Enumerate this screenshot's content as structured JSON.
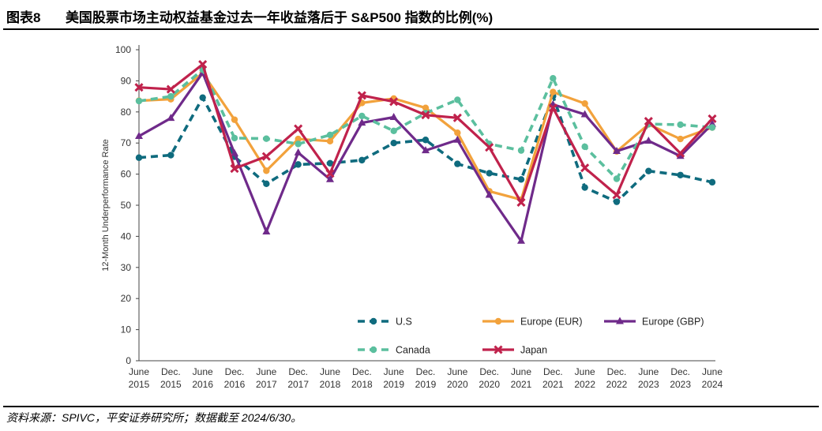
{
  "figure": {
    "label": "图表8",
    "title": "美国股票市场主动权益基金过去一年收益落后于 S&P500 指数的比例(%)",
    "source": "资料来源：SPIVC，平安证券研究所；数据截至 2024/6/30。"
  },
  "chart_data": {
    "type": "line",
    "title": "",
    "xlabel": "",
    "ylabel": "12-Month Underperformance Rate",
    "ylim": [
      0,
      100
    ],
    "yticks": [
      0,
      10,
      20,
      30,
      40,
      50,
      60,
      70,
      80,
      90,
      100
    ],
    "grid": false,
    "legend_position": "bottom-inside",
    "categories": [
      [
        "June",
        "2015"
      ],
      [
        "Dec.",
        "2015"
      ],
      [
        "June",
        "2016"
      ],
      [
        "Dec.",
        "2016"
      ],
      [
        "June",
        "2017"
      ],
      [
        "Dec.",
        "2017"
      ],
      [
        "June",
        "2018"
      ],
      [
        "Dec.",
        "2018"
      ],
      [
        "June",
        "2019"
      ],
      [
        "Dec.",
        "2019"
      ],
      [
        "June",
        "2020"
      ],
      [
        "Dec.",
        "2020"
      ],
      [
        "June",
        "2021"
      ],
      [
        "Dec.",
        "2021"
      ],
      [
        "June",
        "2022"
      ],
      [
        "Dec.",
        "2022"
      ],
      [
        "June",
        "2023"
      ],
      [
        "Dec.",
        "2023"
      ],
      [
        "June",
        "2024"
      ]
    ],
    "series": [
      {
        "name": "U.S",
        "color": "#0f6b7e",
        "dash": "dashed",
        "marker": "circle",
        "values": [
          65.3,
          66.1,
          84.6,
          65.6,
          56.9,
          63.1,
          63.5,
          64.5,
          70.0,
          71.0,
          63.3,
          60.3,
          58.3,
          85.1,
          55.7,
          51.1,
          61.0,
          59.7,
          57.4
        ]
      },
      {
        "name": "Europe (EUR)",
        "color": "#f2a23c",
        "dash": "solid",
        "marker": "circle",
        "values": [
          83.6,
          84.1,
          92.5,
          77.5,
          61.1,
          71.3,
          70.6,
          82.9,
          84.3,
          81.3,
          73.3,
          54.5,
          51.8,
          86.4,
          82.7,
          67.3,
          76.0,
          71.3,
          75.0
        ]
      },
      {
        "name": "Europe (GBP)",
        "color": "#6f2a8a",
        "dash": "solid",
        "marker": "triangle",
        "values": [
          72.2,
          78.0,
          92.6,
          66.7,
          41.5,
          66.9,
          58.3,
          76.5,
          78.3,
          67.6,
          71.0,
          53.3,
          38.5,
          82.4,
          79.2,
          67.4,
          70.7,
          65.8,
          76.1
        ]
      },
      {
        "name": "Canada",
        "color": "#5bbf9e",
        "dash": "dashed",
        "marker": "circle",
        "values": [
          83.5,
          85.0,
          93.6,
          71.6,
          71.4,
          69.7,
          72.6,
          78.7,
          73.9,
          79.6,
          83.9,
          69.7,
          67.6,
          90.8,
          68.8,
          58.5,
          76.1,
          75.9,
          75.0
        ]
      },
      {
        "name": "Japan",
        "color": "#c0224c",
        "dash": "solid",
        "marker": "x",
        "values": [
          87.9,
          87.3,
          95.3,
          61.8,
          65.7,
          74.6,
          60.2,
          85.3,
          83.3,
          79.0,
          78.1,
          68.6,
          50.9,
          81.3,
          62.0,
          53.3,
          77.0,
          66.7,
          77.8
        ]
      }
    ]
  }
}
